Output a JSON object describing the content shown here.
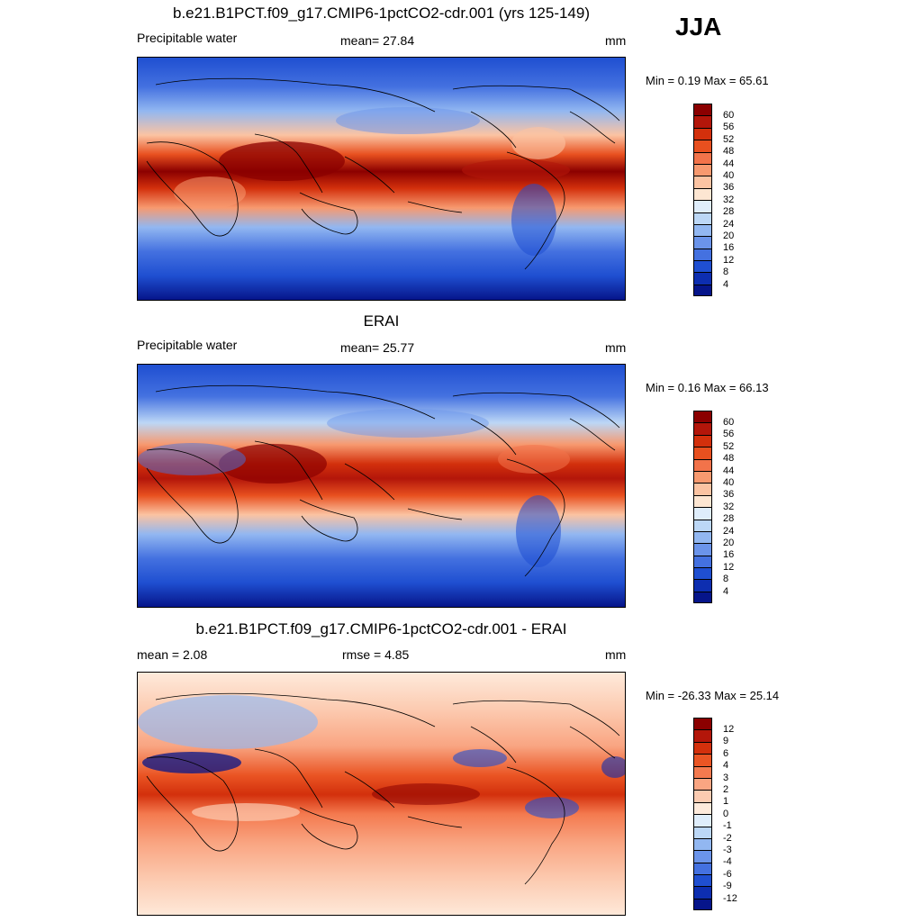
{
  "header": {
    "season": "JJA"
  },
  "panels": [
    {
      "title": "b.e21.B1PCT.f09_g17.CMIP6-1pctCO2-cdr.001 (yrs 125-149)",
      "left_label": "Precipitable water",
      "center_label": "mean=  27.84",
      "unit": "mm",
      "minmax": "Min =   0.19 Max =  65.61",
      "type": "field"
    },
    {
      "title": "ERAI",
      "left_label": "Precipitable water",
      "center_label": "mean=  25.77",
      "unit": "mm",
      "minmax": "Min =   0.16 Max =  66.13",
      "type": "field"
    },
    {
      "title": "b.e21.B1PCT.f09_g17.CMIP6-1pctCO2-cdr.001 - ERAI",
      "left_label": "mean =   2.08",
      "center_label": "rmse =   4.85",
      "unit": "mm",
      "minmax": "Min = -26.33 Max =  25.14",
      "type": "diff"
    }
  ],
  "colorbars": {
    "field": {
      "labels": [
        "60",
        "56",
        "52",
        "48",
        "44",
        "40",
        "36",
        "32",
        "28",
        "24",
        "20",
        "16",
        "12",
        "8",
        "4"
      ],
      "colors": [
        "#8b0000",
        "#b3160a",
        "#d3300c",
        "#e8501f",
        "#f2734a",
        "#f7996f",
        "#fbc3a2",
        "#fde6d2",
        "#dfedfb",
        "#bcd7f6",
        "#92b7f1",
        "#6b94ea",
        "#4471e0",
        "#1f4fd1",
        "#0d2eb0",
        "#06158a"
      ]
    },
    "diff": {
      "labels": [
        "12",
        "9",
        "6",
        "4",
        "3",
        "2",
        "1",
        "0",
        "-1",
        "-2",
        "-3",
        "-4",
        "-6",
        "-9",
        "-12"
      ],
      "colors": [
        "#8b0000",
        "#b3160a",
        "#d3300c",
        "#ea5524",
        "#f47a4f",
        "#f9a582",
        "#fccbb1",
        "#feeadb",
        "#dfedfb",
        "#bcd7f6",
        "#92b7f1",
        "#6b94ea",
        "#4471e0",
        "#1f4fd1",
        "#0d2eb0",
        "#06158a"
      ]
    }
  }
}
